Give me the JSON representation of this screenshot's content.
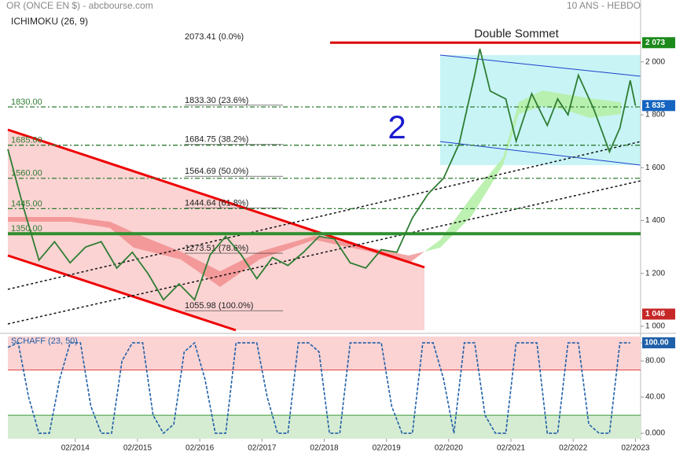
{
  "chart_data": [
    {
      "type": "line",
      "title": "OR (ONCE EN $) - abcbourse.com",
      "subtitle": "10 ANS - HEBDO",
      "indicator": "ICHIMOKU (26, 9)",
      "annotations": [
        {
          "text": "Double Sommet",
          "value": 2073
        },
        {
          "text": "2"
        }
      ],
      "x": [
        "01/2013",
        "04/2013",
        "07/2013",
        "10/2013",
        "01/2014",
        "04/2014",
        "07/2014",
        "10/2014",
        "01/2015",
        "04/2015",
        "07/2015",
        "10/2015",
        "01/2016",
        "04/2016",
        "07/2016",
        "10/2016",
        "01/2017",
        "04/2017",
        "07/2017",
        "10/2017",
        "01/2018",
        "04/2018",
        "07/2018",
        "10/2018",
        "01/2019",
        "04/2019",
        "07/2019",
        "10/2019",
        "01/2020",
        "04/2020",
        "07/2020",
        "08/2020",
        "10/2020",
        "01/2021",
        "03/2021",
        "06/2021",
        "09/2021",
        "11/2021",
        "01/2022",
        "03/2022",
        "06/2022",
        "09/2022",
        "11/2022",
        "01/2023",
        "02/2023"
      ],
      "series": [
        {
          "name": "OR",
          "color": "#2e7d32",
          "values": [
            1670,
            1450,
            1250,
            1320,
            1240,
            1300,
            1320,
            1220,
            1280,
            1200,
            1100,
            1160,
            1100,
            1270,
            1340,
            1270,
            1180,
            1260,
            1230,
            1280,
            1340,
            1330,
            1240,
            1220,
            1290,
            1280,
            1410,
            1500,
            1560,
            1690,
            1950,
            2050,
            1890,
            1860,
            1700,
            1880,
            1760,
            1860,
            1800,
            1950,
            1820,
            1660,
            1750,
            1930,
            1835
          ]
        }
      ],
      "xlim": [
        "01/2013",
        "03/2023"
      ],
      "xticks": [
        "02/2014",
        "02/2015",
        "02/2016",
        "02/2017",
        "02/2018",
        "02/2019",
        "02/2020",
        "02/2021",
        "02/2022",
        "02/2023"
      ],
      "ylim": [
        985,
        2175
      ],
      "yticks": [
        {
          "value": 1000,
          "label": "1 000"
        },
        {
          "value": 1200,
          "label": "1 200"
        },
        {
          "value": 1400,
          "label": "1 400"
        },
        {
          "value": 1600,
          "label": "1 600"
        },
        {
          "value": 1800,
          "label": "1 800"
        },
        {
          "value": 2000,
          "label": "2 000"
        }
      ],
      "fib_levels": [
        {
          "value": 2073.41,
          "label": "2073.41  (0.0%)"
        },
        {
          "value": 1833.3,
          "label": "1833.30  (23.6%)"
        },
        {
          "value": 1684.75,
          "label": "1684.75  (38.2%)"
        },
        {
          "value": 1564.69,
          "label": "1564.69  (50.0%)"
        },
        {
          "value": 1444.64,
          "label": "1444.64  (61.8%)"
        },
        {
          "value": 1273.51,
          "label": "1273.51  (78.6%)"
        },
        {
          "value": 1055.98,
          "label": "1055.98  (100.0%)"
        }
      ],
      "support_levels": [
        {
          "value": 1830,
          "label": "1830.00"
        },
        {
          "value": 1685,
          "label": "1685.00"
        },
        {
          "value": 1560,
          "label": "1560.00"
        },
        {
          "value": 1445,
          "label": "1445.00"
        },
        {
          "value": 1350,
          "label": "1350.00"
        }
      ],
      "price_tags": [
        {
          "value": 2073,
          "label": "2 073",
          "color": "#1b8a1b"
        },
        {
          "value": 1835,
          "label": "1 835",
          "color": "#1565c0"
        },
        {
          "value": 1046,
          "label": "1 046",
          "color": "#c62828"
        }
      ]
    },
    {
      "type": "line",
      "title": "SCHAFF (23, 50)",
      "x": [
        "01/2013",
        "03/2013",
        "05/2013",
        "07/2013",
        "09/2013",
        "11/2013",
        "01/2014",
        "03/2014",
        "05/2014",
        "07/2014",
        "09/2014",
        "11/2014",
        "01/2015",
        "03/2015",
        "05/2015",
        "07/2015",
        "09/2015",
        "11/2015",
        "01/2016",
        "03/2016",
        "05/2016",
        "07/2016",
        "09/2016",
        "11/2016",
        "01/2017",
        "03/2017",
        "05/2017",
        "07/2017",
        "09/2017",
        "11/2017",
        "01/2018",
        "03/2018",
        "05/2018",
        "07/2018",
        "09/2018",
        "11/2018",
        "01/2019",
        "03/2019",
        "05/2019",
        "07/2019",
        "09/2019",
        "11/2019",
        "01/2020",
        "03/2020",
        "05/2020",
        "07/2020",
        "09/2020",
        "11/2020",
        "01/2021",
        "03/2021",
        "05/2021",
        "07/2021",
        "09/2021",
        "11/2021",
        "01/2022",
        "03/2022",
        "05/2022",
        "07/2022",
        "09/2022",
        "11/2022",
        "01/2023"
      ],
      "series": [
        {
          "name": "SCHAFF",
          "color": "#1f5fa8",
          "values": [
            95,
            100,
            40,
            0,
            0,
            60,
            100,
            100,
            30,
            0,
            0,
            80,
            100,
            100,
            20,
            0,
            10,
            90,
            100,
            60,
            0,
            0,
            100,
            100,
            100,
            40,
            0,
            0,
            100,
            100,
            90,
            0,
            0,
            100,
            100,
            100,
            100,
            30,
            0,
            0,
            100,
            100,
            60,
            0,
            100,
            100,
            20,
            0,
            0,
            100,
            100,
            100,
            0,
            0,
            100,
            100,
            10,
            0,
            0,
            100,
            100
          ]
        }
      ],
      "xlim": [
        "01/2013",
        "03/2023"
      ],
      "ylim": [
        -6,
        107
      ],
      "yticks": [
        {
          "value": 0,
          "label": "0.000"
        },
        {
          "value": 40,
          "label": "40.00"
        },
        {
          "value": 80,
          "label": "80.00"
        },
        {
          "value": 100,
          "label": "100.00"
        }
      ],
      "levels": [
        70,
        20
      ]
    }
  ]
}
